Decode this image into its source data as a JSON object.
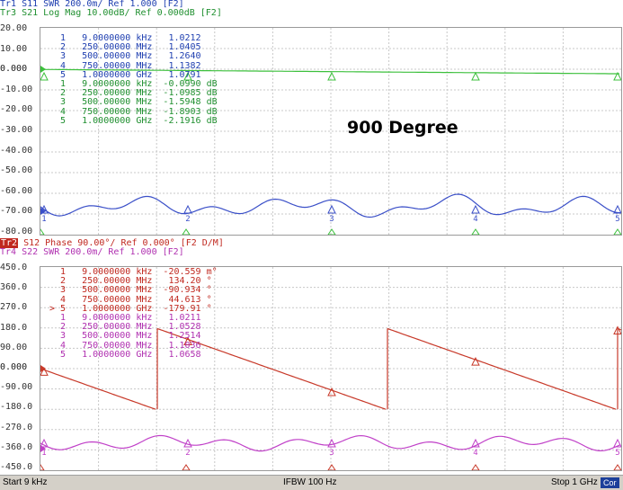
{
  "top_panel": {
    "header_lines": [
      {
        "text": "Tr1 S11 SWR 200.0m/ Ref 1.000 [F2]",
        "color": "#1f3fb0"
      },
      {
        "text": "Tr3 S21 Log Mag 10.00dB/ Ref 0.000dB [F2]",
        "color": "#1f8f2f"
      }
    ],
    "y_labels": [
      "20.00",
      "10.00",
      "0.000",
      "-10.00",
      "-20.00",
      "-30.00",
      "-40.00",
      "-50.00",
      "-60.00",
      "-70.00",
      "-80.00"
    ],
    "markers_swr": [
      {
        "n": "1",
        "freq": "9.0000000",
        "unit": "kHz",
        "value": "1.0212"
      },
      {
        "n": "2",
        "freq": "250.00000",
        "unit": "MHz",
        "value": "1.0405"
      },
      {
        "n": "3",
        "freq": "500.00000",
        "unit": "MHz",
        "value": "1.2640"
      },
      {
        "n": "4",
        "freq": "750.00000",
        "unit": "MHz",
        "value": "1.1382"
      },
      {
        "n": "5",
        "freq": "1.0000000",
        "unit": "GHz",
        "value": "1.0791"
      }
    ],
    "markers_logmag": [
      {
        "n": "1",
        "freq": "9.0000000",
        "unit": "kHz",
        "value": "-0.0990",
        "suffix": "dB"
      },
      {
        "n": "2",
        "freq": "250.00000",
        "unit": "MHz",
        "value": "-1.0985",
        "suffix": "dB"
      },
      {
        "n": "3",
        "freq": "500.00000",
        "unit": "MHz",
        "value": "-1.5948",
        "suffix": "dB"
      },
      {
        "n": "4",
        "freq": "750.00000",
        "unit": "MHz",
        "value": "-1.8903",
        "suffix": "dB"
      },
      {
        "n": "5",
        "freq": "1.0000000",
        "unit": "GHz",
        "value": "-2.1916",
        "suffix": "dB"
      }
    ]
  },
  "annotation": "900 Degree",
  "bottom_panel": {
    "header_tag": "Tr2",
    "header_lines": [
      {
        "text": " S12 Phase 90.00°/ Ref 0.000° [F2 D/M]",
        "color": "#c0281f"
      },
      {
        "text": "Tr4 S22 SWR 200.0m/ Ref 1.000 [F2]",
        "color": "#b030b0"
      }
    ],
    "y_labels": [
      "450.0",
      "360.0",
      "270.0",
      "180.0",
      "90.00",
      "0.000",
      "-90.00",
      "-180.0",
      "-270.0",
      "-360.0",
      "-450.0"
    ],
    "markers_phase": [
      {
        "n": "1",
        "prefix": " ",
        "freq": "9.0000000",
        "unit": "kHz",
        "value": "-20.559",
        "suffix": "m°"
      },
      {
        "n": "2",
        "prefix": " ",
        "freq": "250.00000",
        "unit": "MHz",
        "value": "134.20",
        "suffix": "°"
      },
      {
        "n": "3",
        "prefix": " ",
        "freq": "500.00000",
        "unit": "MHz",
        "value": "-90.934",
        "suffix": "°"
      },
      {
        "n": "4",
        "prefix": " ",
        "freq": "750.00000",
        "unit": "MHz",
        "value": "44.613",
        "suffix": "°"
      },
      {
        "n": "5",
        "prefix": ">",
        "freq": "1.0000000",
        "unit": "GHz",
        "value": "-179.91",
        "suffix": "°"
      }
    ],
    "markers_swr": [
      {
        "n": "1",
        "freq": "9.0000000",
        "unit": "kHz",
        "value": "1.0211"
      },
      {
        "n": "2",
        "freq": "250.00000",
        "unit": "MHz",
        "value": "1.0528"
      },
      {
        "n": "3",
        "freq": "500.00000",
        "unit": "MHz",
        "value": "1.2514"
      },
      {
        "n": "4",
        "freq": "750.00000",
        "unit": "MHz",
        "value": "1.1036"
      },
      {
        "n": "5",
        "freq": "1.0000000",
        "unit": "GHz",
        "value": "1.0658"
      }
    ]
  },
  "status_bar": {
    "start": "Start 9 kHz",
    "ifbw": "IFBW 100 Hz",
    "stop": "Stop 1 GHz",
    "cor": "Cor"
  },
  "colors": {
    "swr_top": "#3a4fc8",
    "logmag": "#3cc03c",
    "phase": "#c83a2a",
    "swr_bottom": "#c040c8",
    "grid": "#c8c8c8"
  }
}
